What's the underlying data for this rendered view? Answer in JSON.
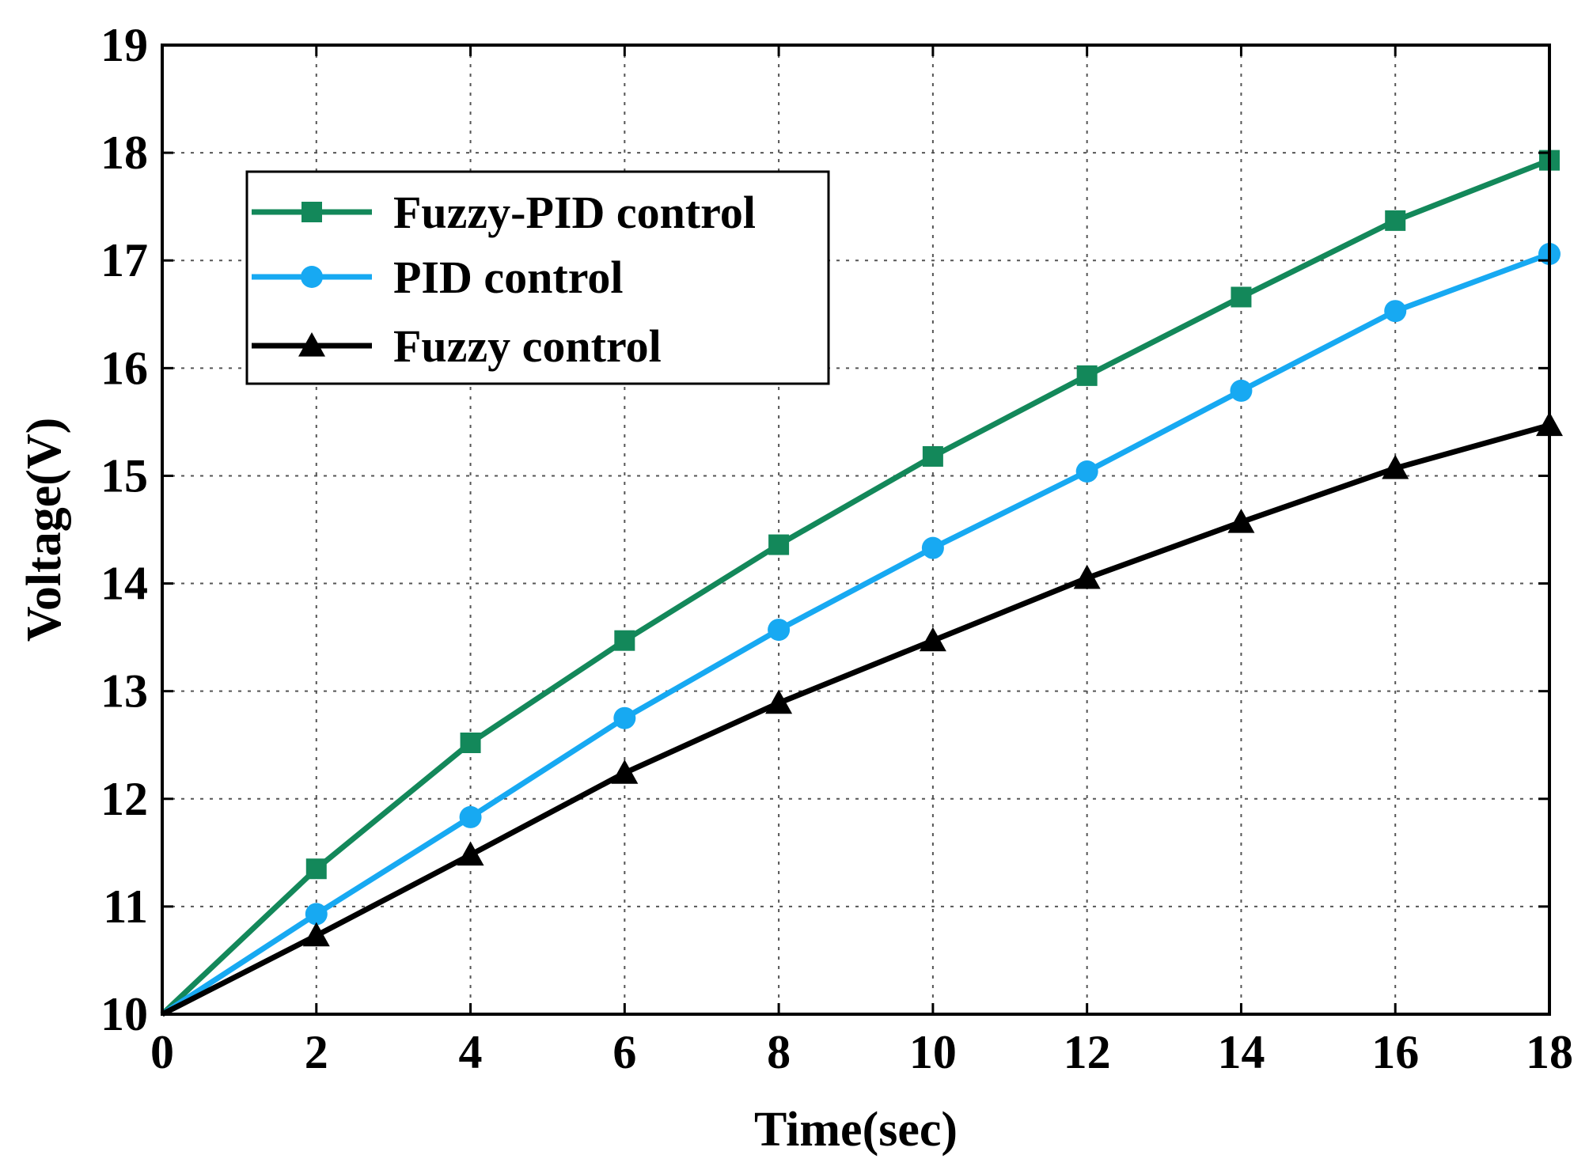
{
  "chart_data": {
    "type": "line",
    "title": "",
    "xlabel": "Time(sec)",
    "ylabel": "Voltage(V)",
    "xlim": [
      0,
      18
    ],
    "ylim": [
      10,
      19
    ],
    "xticks": [
      0,
      2,
      4,
      6,
      8,
      10,
      12,
      14,
      16,
      18
    ],
    "yticks": [
      10,
      11,
      12,
      13,
      14,
      15,
      16,
      17,
      18,
      19
    ],
    "grid": true,
    "legend_position": "top-left",
    "x": [
      0,
      2,
      4,
      6,
      8,
      10,
      12,
      14,
      16,
      18
    ],
    "series": [
      {
        "name": "Fuzzy-PID control",
        "color": "#13885a",
        "marker": "square",
        "values": [
          10.0,
          11.35,
          12.52,
          13.47,
          14.36,
          15.18,
          15.93,
          16.66,
          17.37,
          17.93
        ]
      },
      {
        "name": "PID control",
        "color": "#17a9f2",
        "marker": "circle",
        "values": [
          10.0,
          10.93,
          11.83,
          12.75,
          13.57,
          14.33,
          15.04,
          15.79,
          16.53,
          17.06
        ]
      },
      {
        "name": "Fuzzy control",
        "color": "#000000",
        "marker": "triangle",
        "values": [
          10.0,
          10.73,
          11.48,
          12.24,
          12.89,
          13.47,
          14.05,
          14.57,
          15.07,
          15.47
        ]
      }
    ]
  }
}
